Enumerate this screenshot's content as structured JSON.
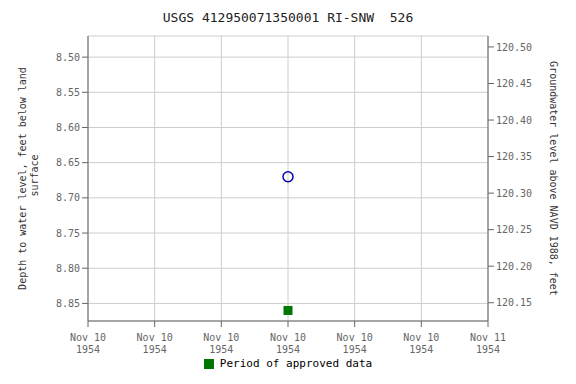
{
  "chart_data": {
    "type": "scatter",
    "title": "USGS 412950071350001 RI-SNW  526",
    "ylabel": "Depth to water level, feet below land\n surface",
    "y2label": "Groundwater level above NAVD 1988, feet",
    "categories": [
      "Nov 10\n1954",
      "Nov 10\n1954",
      "Nov 10\n1954",
      "Nov 10\n1954",
      "Nov 10\n1954",
      "Nov 10\n1954",
      "Nov 11\n1954"
    ],
    "series": [
      {
        "color": "#0000bb",
        "marker": "open_circle",
        "values": [
          null,
          null,
          null,
          8.67,
          null,
          null,
          null
        ]
      },
      {
        "name": "Period of approved data",
        "color": "#007700",
        "marker": "square",
        "values": [
          null,
          null,
          null,
          8.86,
          null,
          null,
          null
        ]
      }
    ],
    "ylim": [
      8.875,
      8.47
    ],
    "yticks": [
      {
        "value": 8.5,
        "label": "8.50"
      },
      {
        "value": 8.55,
        "label": "8.55"
      },
      {
        "value": 8.6,
        "label": "8.60"
      },
      {
        "value": 8.65,
        "label": "8.65"
      },
      {
        "value": 8.7,
        "label": "8.70"
      },
      {
        "value": 8.75,
        "label": "8.75"
      },
      {
        "value": 8.8,
        "label": "8.80"
      },
      {
        "value": 8.85,
        "label": "8.85"
      }
    ],
    "y2lim": [
      120.125,
      120.515
    ],
    "y2ticks": [
      {
        "value": 120.5,
        "label": "120.50"
      },
      {
        "value": 120.45,
        "label": "120.45"
      },
      {
        "value": 120.4,
        "label": "120.40"
      },
      {
        "value": 120.35,
        "label": "120.35"
      },
      {
        "value": 120.3,
        "label": "120.30"
      },
      {
        "value": 120.25,
        "label": "120.25"
      },
      {
        "value": 120.2,
        "label": "120.20"
      },
      {
        "value": 120.15,
        "label": "120.15"
      }
    ],
    "grid": true,
    "legend": "bottom"
  }
}
